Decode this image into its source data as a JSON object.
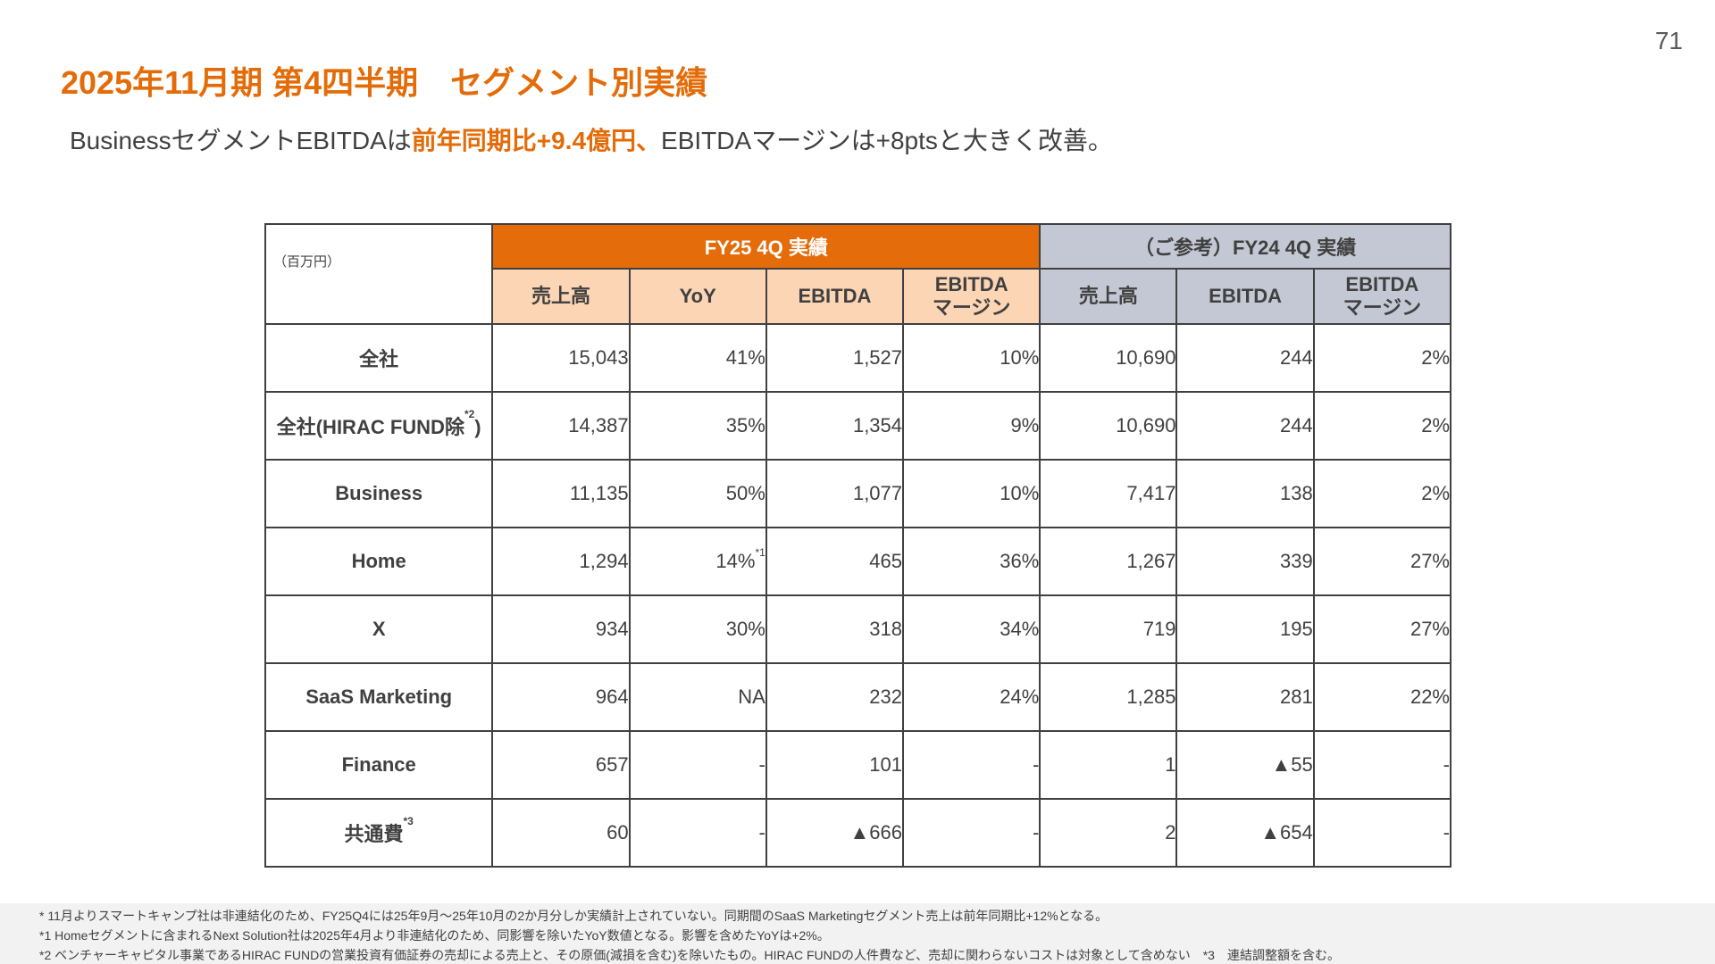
{
  "page_number": "71",
  "title": "2025年11月期 第4四半期　セグメント別実績",
  "subtitle": {
    "part1": "BusinessセグメントEBITDAは",
    "highlight": "前年同期比+9.4億円、",
    "part2": "EBITDAマージンは+8ptsと大きく改善。"
  },
  "table": {
    "unit": "（百万円）",
    "group_fy25": "FY25 4Q 実績",
    "group_fy24": "（ご参考）FY24 4Q 実績",
    "fy25_cols": {
      "sales": "売上高",
      "yoy": "YoY",
      "ebitda": "EBITDA",
      "margin_line1": "EBITDA",
      "margin_line2": "マージン"
    },
    "fy24_cols": {
      "sales": "売上高",
      "ebitda": "EBITDA",
      "margin_line1": "EBITDA",
      "margin_line2": "マージン"
    },
    "rows": [
      {
        "label": "全社",
        "sup": "",
        "sales": "15,043",
        "yoy": "41%",
        "yoy_sup": "",
        "ebitda": "1,527",
        "margin": "10%",
        "p_sales": "10,690",
        "p_ebitda": "244",
        "p_margin": "2%"
      },
      {
        "label": "全社(HIRAC FUND除",
        "sup": "*2",
        "label_tail": ")",
        "sales": "14,387",
        "yoy": "35%",
        "yoy_sup": "",
        "ebitda": "1,354",
        "margin": "9%",
        "p_sales": "10,690",
        "p_ebitda": "244",
        "p_margin": "2%"
      },
      {
        "label": "Business",
        "sup": "",
        "sales": "11,135",
        "yoy": "50%",
        "yoy_sup": "",
        "ebitda": "1,077",
        "margin": "10%",
        "p_sales": "7,417",
        "p_ebitda": "138",
        "p_margin": "2%"
      },
      {
        "label": "Home",
        "sup": "",
        "sales": "1,294",
        "yoy": "14%",
        "yoy_sup": "*1",
        "ebitda": "465",
        "margin": "36%",
        "p_sales": "1,267",
        "p_ebitda": "339",
        "p_margin": "27%"
      },
      {
        "label": "X",
        "sup": "",
        "sales": "934",
        "yoy": "30%",
        "yoy_sup": "",
        "ebitda": "318",
        "margin": "34%",
        "p_sales": "719",
        "p_ebitda": "195",
        "p_margin": "27%"
      },
      {
        "label": "SaaS Marketing",
        "sup": "",
        "sales": "964",
        "yoy": "NA",
        "yoy_sup": "",
        "ebitda": "232",
        "margin": "24%",
        "p_sales": "1,285",
        "p_ebitda": "281",
        "p_margin": "22%"
      },
      {
        "label": "Finance",
        "sup": "",
        "sales": "657",
        "yoy": "-",
        "yoy_sup": "",
        "ebitda": "101",
        "margin": "-",
        "p_sales": "1",
        "p_ebitda": "▲55",
        "p_margin": "-"
      },
      {
        "label": "共通費",
        "sup": "*3",
        "sales": "60",
        "yoy": "-",
        "yoy_sup": "",
        "ebitda": "▲666",
        "margin": "-",
        "p_sales": "2",
        "p_ebitda": "▲654",
        "p_margin": "-"
      }
    ]
  },
  "footnotes": [
    "* 11月よりスマートキャンプ社は非連結化のため、FY25Q4には25年9月～25年10月の2か月分しか実績計上されていない。同期間のSaaS Marketingセグメント売上は前年同期比+12%となる。",
    "*1 Homeセグメントに含まれるNext Solution社は2025年4月より非連結化のため、同影響を除いたYoY数値となる。影響を含めたYoYは+2%。",
    "*2 ベンチャーキャピタル事業であるHIRAC FUNDの営業投資有価証券の売却による売上と、その原価(減損を含む)を除いたもの。HIRAC FUNDの人件費など、売却に関わらないコストは対象として含めない　*3　連結調整額を含む。"
  ]
}
